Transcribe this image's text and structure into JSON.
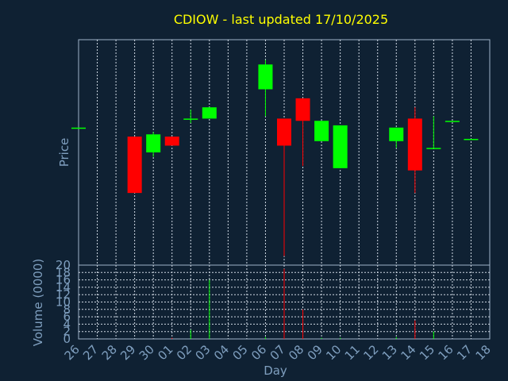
{
  "colors": {
    "background": "#0f2133",
    "frame": "#9fb3c8",
    "grid": "#cfd8e3",
    "title": "#ffff00",
    "label": "#7f9fbf",
    "up": "#00ff00",
    "down": "#ff0000"
  },
  "chart_data": {
    "type": "candlestick",
    "title": "CDIOW - last updated 17/10/2025",
    "xlabel": "Day",
    "ylabel_price": "Price",
    "ylabel_volume": "Volume (0000)",
    "price_range": [
      0,
      100
    ],
    "volume_range": [
      0,
      20
    ],
    "volume_ticks": [
      "0",
      "2",
      "4",
      "6",
      "8",
      "10",
      "12",
      "14",
      "16",
      "18",
      "20"
    ],
    "categories": [
      "26",
      "27",
      "28",
      "29",
      "30",
      "01",
      "02",
      "03",
      "04",
      "05",
      "06",
      "07",
      "08",
      "09",
      "10",
      "11",
      "12",
      "13",
      "14",
      "15",
      "16",
      "17",
      "18"
    ],
    "candles": [
      {
        "day": "26",
        "open": 61,
        "close": 61,
        "high": 61,
        "low": 61,
        "volume": 0
      },
      {
        "day": "29",
        "open": 57,
        "close": 32,
        "high": 57,
        "low": 32,
        "volume": 0
      },
      {
        "day": "30",
        "open": 50,
        "close": 58,
        "high": 59,
        "low": 48,
        "volume": 0
      },
      {
        "day": "01",
        "open": 57,
        "close": 53,
        "high": 57,
        "low": 53,
        "volume": 0.3
      },
      {
        "day": "02",
        "open": 65,
        "close": 65,
        "high": 69,
        "low": 63,
        "volume": 2.5
      },
      {
        "day": "03",
        "open": 65,
        "close": 70,
        "high": 70,
        "low": 65,
        "volume": 16
      },
      {
        "day": "06",
        "open": 78,
        "close": 89,
        "high": 91,
        "low": 66,
        "volume": 0.5
      },
      {
        "day": "07",
        "open": 65,
        "close": 53,
        "high": 65,
        "low": 4,
        "volume": 19
      },
      {
        "day": "08",
        "open": 74,
        "close": 64,
        "high": 74,
        "low": 44,
        "volume": 8
      },
      {
        "day": "09",
        "open": 55,
        "close": 64,
        "high": 64,
        "low": 55,
        "volume": 0.3
      },
      {
        "day": "10",
        "open": 43,
        "close": 62,
        "high": 62,
        "low": 43,
        "volume": 0.3
      },
      {
        "day": "13",
        "open": 55,
        "close": 61,
        "high": 61,
        "low": 52,
        "volume": 0.5
      },
      {
        "day": "14",
        "open": 65,
        "close": 42,
        "high": 70,
        "low": 32,
        "volume": 5
      },
      {
        "day": "15",
        "open": 52,
        "close": 52,
        "high": 66,
        "low": 52,
        "volume": 2
      },
      {
        "day": "16",
        "open": 64,
        "close": 64,
        "high": 64,
        "low": 64,
        "volume": 0
      },
      {
        "day": "17",
        "open": 56,
        "close": 56,
        "high": 56,
        "low": 56,
        "volume": 0
      }
    ]
  }
}
